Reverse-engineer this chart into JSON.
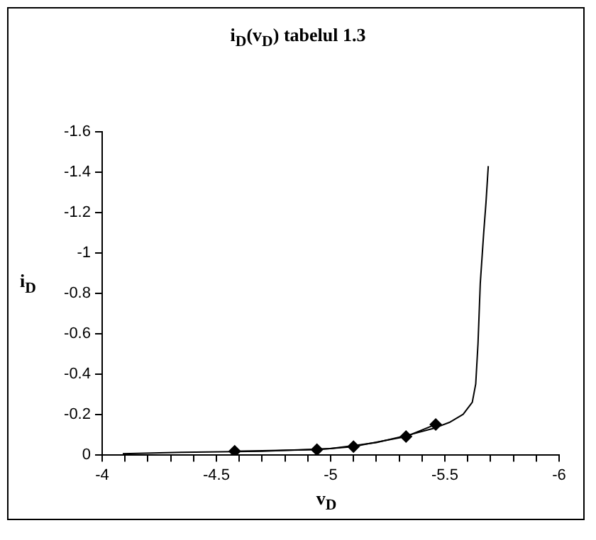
{
  "chart_data": {
    "type": "line",
    "title": "i$_{D}$(v$_{D}$) tabelul 1.3",
    "xlabel": "v$_{D}$",
    "ylabel": "i$_{D}$",
    "xlim": [
      -4,
      -6
    ],
    "ylim": [
      0,
      -1.6
    ],
    "xticks": [
      -4,
      {
        "value": -4.1,
        "label": null
      },
      {
        "value": -4.2,
        "label": null
      },
      {
        "value": -4.3,
        "label": null
      },
      {
        "value": -4.4,
        "label": null
      },
      -4.5,
      {
        "value": -4.6,
        "label": null
      },
      {
        "value": -4.7,
        "label": null
      },
      {
        "value": -4.8,
        "label": null
      },
      {
        "value": -4.9,
        "label": null
      },
      -5,
      {
        "value": -5.1,
        "label": null
      },
      {
        "value": -5.2,
        "label": null
      },
      {
        "value": -5.3,
        "label": null
      },
      {
        "value": -5.4,
        "label": null
      },
      -5.5,
      {
        "value": -5.6,
        "label": null
      },
      {
        "value": -5.7,
        "label": null
      },
      {
        "value": -5.8,
        "label": null
      },
      {
        "value": -5.9,
        "label": null
      },
      -6
    ],
    "yticks": [
      0,
      -0.2,
      -0.4,
      -0.6,
      -0.8,
      -1,
      -1.2,
      -1.4,
      -1.6
    ],
    "grid": false,
    "series": [
      {
        "marker": "none",
        "color": "#000000",
        "x": [
          -4.09,
          -4.35,
          -4.7,
          -5.0,
          -5.2,
          -5.35,
          -5.45,
          -5.52,
          -5.58,
          -5.62,
          -5.635,
          -5.645,
          -5.655,
          -5.67,
          -5.68,
          -5.69
        ],
        "values": [
          -0.005,
          -0.012,
          -0.017,
          -0.03,
          -0.06,
          -0.1,
          -0.13,
          -0.16,
          -0.2,
          -0.26,
          -0.35,
          -0.55,
          -0.85,
          -1.1,
          -1.25,
          -1.43
        ]
      },
      {
        "marker": "diamond",
        "color": "#000000",
        "x": [
          -4.58,
          -4.94,
          -5.1,
          -5.33,
          -5.46
        ],
        "values": [
          -0.017,
          -0.025,
          -0.04,
          -0.09,
          -0.15
        ]
      }
    ]
  }
}
